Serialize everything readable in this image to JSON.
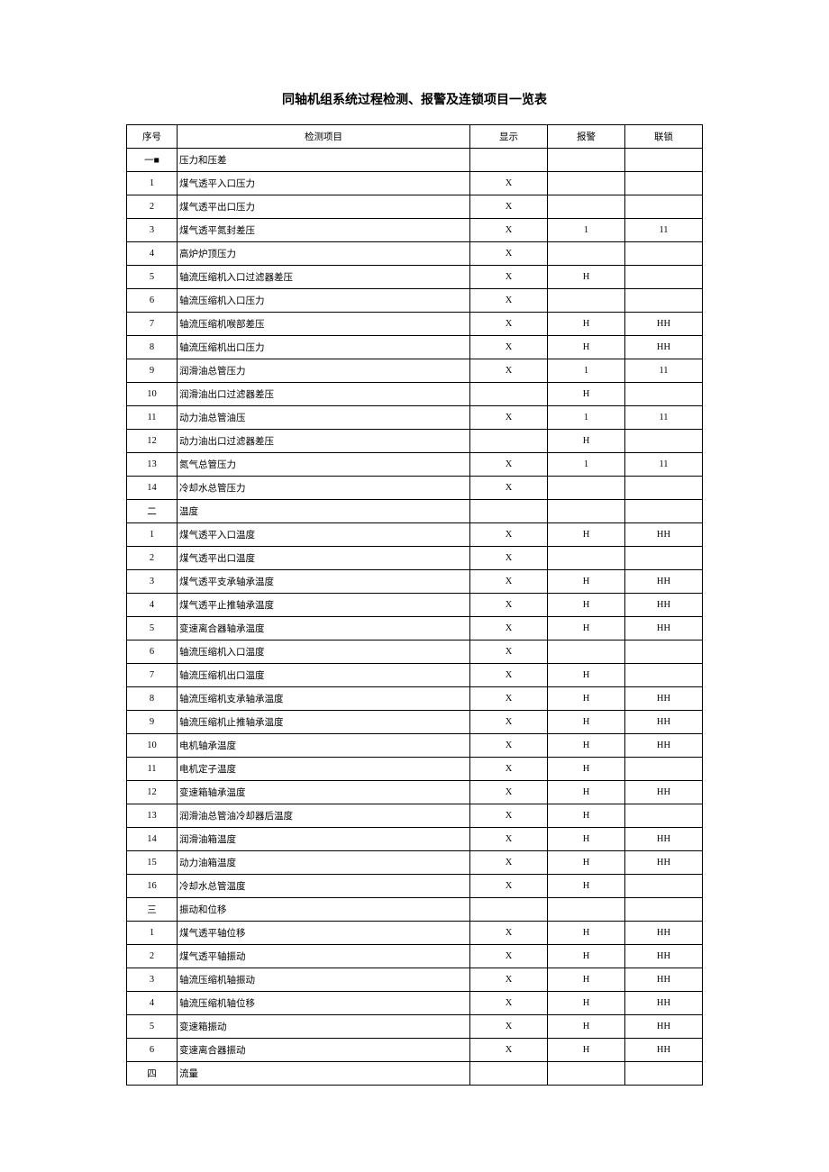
{
  "title": "同轴机组系统过程检测、报警及连锁项目一览表",
  "headers": [
    "序号",
    "检测项目",
    "显示",
    "报警",
    "联锁"
  ],
  "rows": [
    {
      "seq": "一■",
      "item": "压力和压差",
      "disp": "",
      "alarm": "",
      "lock": ""
    },
    {
      "seq": "1",
      "item": "煤气透平入口压力",
      "disp": "X",
      "alarm": "",
      "lock": ""
    },
    {
      "seq": "2",
      "item": "煤气透平出口压力",
      "disp": "X",
      "alarm": "",
      "lock": ""
    },
    {
      "seq": "3",
      "item": "煤气透平氮封差压",
      "disp": "X",
      "alarm": "1",
      "lock": "11"
    },
    {
      "seq": "4",
      "item": "高炉炉顶压力",
      "disp": "X",
      "alarm": "",
      "lock": ""
    },
    {
      "seq": "5",
      "item": "轴流压缩机入口过滤器差压",
      "disp": "X",
      "alarm": "H",
      "lock": ""
    },
    {
      "seq": "6",
      "item": "轴流压缩机入口压力",
      "disp": "X",
      "alarm": "",
      "lock": ""
    },
    {
      "seq": "7",
      "item": "轴流压缩机喉部差压",
      "disp": "X",
      "alarm": "H",
      "lock": "HH"
    },
    {
      "seq": "8",
      "item": "轴流压缩机出口压力",
      "disp": "X",
      "alarm": "H",
      "lock": "HH"
    },
    {
      "seq": "9",
      "item": "润滑油总管压力",
      "disp": "X",
      "alarm": "1",
      "lock": "11"
    },
    {
      "seq": "10",
      "item": "润滑油出口过滤器差压",
      "disp": "",
      "alarm": "H",
      "lock": ""
    },
    {
      "seq": "11",
      "item": "动力油总管油压",
      "disp": "X",
      "alarm": "1",
      "lock": "11"
    },
    {
      "seq": "12",
      "item": "动力油出口过滤器差压",
      "disp": "",
      "alarm": "H",
      "lock": ""
    },
    {
      "seq": "13",
      "item": "氮气总管压力",
      "disp": "X",
      "alarm": "1",
      "lock": "11"
    },
    {
      "seq": "14",
      "item": "冷却水总管压力",
      "disp": "X",
      "alarm": "",
      "lock": ""
    },
    {
      "seq": "二",
      "item": "温度",
      "disp": "",
      "alarm": "",
      "lock": ""
    },
    {
      "seq": "1",
      "item": "煤气透平入口温度",
      "disp": "X",
      "alarm": "H",
      "lock": "HH"
    },
    {
      "seq": "2",
      "item": "煤气透平出口温度",
      "disp": "X",
      "alarm": "",
      "lock": ""
    },
    {
      "seq": "3",
      "item": "煤气透平支承轴承温度",
      "disp": "X",
      "alarm": "H",
      "lock": "HH"
    },
    {
      "seq": "4",
      "item": "煤气透平止推轴承温度",
      "disp": "X",
      "alarm": "H",
      "lock": "HH"
    },
    {
      "seq": "5",
      "item": "变速离合器轴承温度",
      "disp": "X",
      "alarm": "H",
      "lock": "HH"
    },
    {
      "seq": "6",
      "item": "轴流压缩机入口温度",
      "disp": "X",
      "alarm": "",
      "lock": ""
    },
    {
      "seq": "7",
      "item": "轴流压缩机出口温度",
      "disp": "X",
      "alarm": "H",
      "lock": ""
    },
    {
      "seq": "8",
      "item": "轴流压缩机支承轴承温度",
      "disp": "X",
      "alarm": "H",
      "lock": "HH"
    },
    {
      "seq": "9",
      "item": "轴流压缩机止推轴承温度",
      "disp": "X",
      "alarm": "H",
      "lock": "HH"
    },
    {
      "seq": "10",
      "item": "电机轴承温度",
      "disp": "X",
      "alarm": "H",
      "lock": "HH"
    },
    {
      "seq": "11",
      "item": "电机定子温度",
      "disp": "X",
      "alarm": "H",
      "lock": ""
    },
    {
      "seq": "12",
      "item": "变速箱轴承温度",
      "disp": "X",
      "alarm": "H",
      "lock": "HH"
    },
    {
      "seq": "13",
      "item": "润滑油总管油冷却器后温度",
      "disp": "X",
      "alarm": "H",
      "lock": ""
    },
    {
      "seq": "14",
      "item": "润滑油箱温度",
      "disp": "X",
      "alarm": "H",
      "lock": "HH"
    },
    {
      "seq": "15",
      "item": "动力油箱温度",
      "disp": "X",
      "alarm": "H",
      "lock": "HH"
    },
    {
      "seq": "16",
      "item": "冷却水总管温度",
      "disp": "X",
      "alarm": "H",
      "lock": ""
    },
    {
      "seq": "三",
      "item": "振动和位移",
      "disp": "",
      "alarm": "",
      "lock": ""
    },
    {
      "seq": "1",
      "item": "煤气透平轴位移",
      "disp": "X",
      "alarm": "H",
      "lock": "HH"
    },
    {
      "seq": "2",
      "item": "煤气透平轴振动",
      "disp": "X",
      "alarm": "H",
      "lock": "HH"
    },
    {
      "seq": "3",
      "item": "轴流压缩机轴振动",
      "disp": "X",
      "alarm": "H",
      "lock": "HH"
    },
    {
      "seq": "4",
      "item": "轴流压缩机轴位移",
      "disp": "X",
      "alarm": "H",
      "lock": "HH"
    },
    {
      "seq": "5",
      "item": "变速箱振动",
      "disp": "X",
      "alarm": "H",
      "lock": "HH"
    },
    {
      "seq": "6",
      "item": "变速离合器振动",
      "disp": "X",
      "alarm": "H",
      "lock": "HH"
    },
    {
      "seq": "四",
      "item": "流量",
      "disp": "",
      "alarm": "",
      "lock": ""
    }
  ]
}
